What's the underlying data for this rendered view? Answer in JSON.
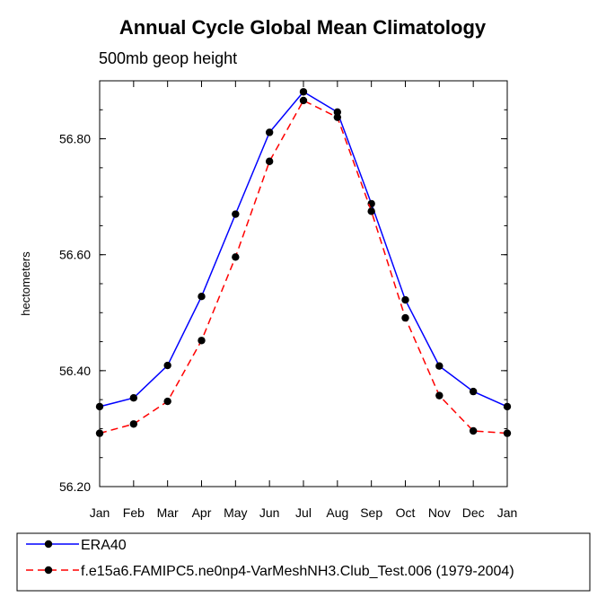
{
  "chart_data": {
    "type": "line",
    "title": "Annual Cycle Global Mean Climatology",
    "subtitle": "500mb geop height",
    "xlabel": "",
    "ylabel": "hectometers",
    "categories": [
      "Jan",
      "Feb",
      "Mar",
      "Apr",
      "May",
      "Jun",
      "Jul",
      "Aug",
      "Sep",
      "Oct",
      "Nov",
      "Dec",
      "Jan"
    ],
    "ylim": [
      56.2,
      56.9
    ],
    "yticks": [
      56.2,
      56.4,
      56.6,
      56.8
    ],
    "ytick_labels": [
      "56.20",
      "56.40",
      "56.60",
      "56.80"
    ],
    "grid": false,
    "legend_position": "bottom",
    "series": [
      {
        "name": "ERA40",
        "color": "#0000ff",
        "line_style": "solid",
        "marker": "filled-circle",
        "values": [
          56.338,
          56.353,
          56.409,
          56.528,
          56.67,
          56.811,
          56.881,
          56.846,
          56.688,
          56.522,
          56.408,
          56.364,
          56.338
        ]
      },
      {
        "name": "f.e15a6.FAMIPC5.ne0np4-VarMeshNH3.Club_Test.006 (1979-2004)",
        "color": "#ff0000",
        "line_style": "dashed",
        "marker": "filled-circle",
        "values": [
          56.292,
          56.308,
          56.347,
          56.452,
          56.596,
          56.761,
          56.866,
          56.837,
          56.675,
          56.491,
          56.357,
          56.296,
          56.292
        ]
      }
    ]
  }
}
